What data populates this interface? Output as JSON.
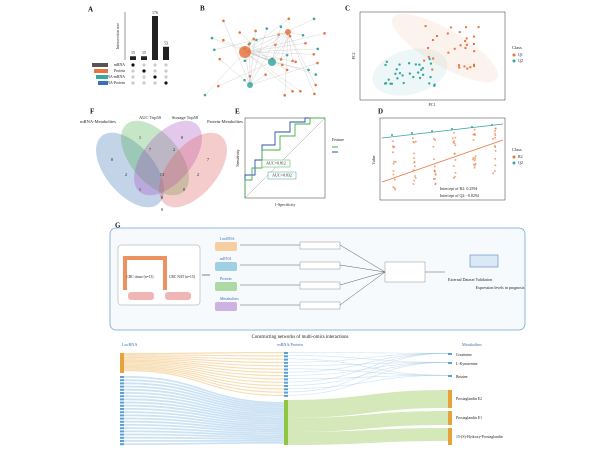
{
  "panels": {
    "A": {
      "letter": "A",
      "y_label": "Intersection size",
      "values": [
        15,
        15,
        176,
        53
      ],
      "sets": [
        "mRNA",
        "Protein",
        "LncRNA-mRNA",
        "LncRNA-Protein"
      ]
    },
    "B": {
      "letter": "B"
    },
    "C": {
      "letter": "C",
      "x_label": "PC1",
      "y_label": "PC2",
      "legend_title": "Class",
      "legend": [
        "Q1",
        "Q2"
      ]
    },
    "D": {
      "letter": "D",
      "y_label": "Value",
      "legend_title": "Class",
      "legend": [
        "R2",
        "Q2"
      ],
      "annotations": [
        "Intercept of R2: 0.2594",
        "Intercept of Q2: -0.8294"
      ]
    },
    "E": {
      "letter": "E",
      "x_label": "1-Specificity",
      "y_label": "Sensitivity",
      "legend_title": "Feature",
      "annotations": [
        "AUC=0.812",
        "AUC=0.832"
      ]
    },
    "F": {
      "letter": "F",
      "sets": [
        "mRNA-Metabolites",
        "AUC Top50",
        "Storage Top50",
        "Protein-Metabolites"
      ],
      "regions": [
        "0",
        "1",
        "0",
        "7",
        "2",
        "7",
        "13",
        "2",
        "2",
        "1",
        "0",
        "0",
        "0"
      ]
    },
    "G": {
      "letter": "G",
      "samples": [
        "CRC tissue (n=15)",
        "CRC NAT (n=15)"
      ],
      "omics": [
        "LncRNA",
        "mRNA",
        "Protein",
        "Metabolites"
      ],
      "steps": [
        "External Dataset Validation",
        "Expression levels in prognosis"
      ],
      "network_title": "Constructing networks of multi-omics interactions"
    },
    "sankey": {
      "columns": [
        "LncRNA",
        "mRNA/Protein",
        "Metabolites"
      ],
      "metabolites": [
        "Creatinine",
        "L-Kynurenine",
        "Betaine",
        "Prostaglandin E2",
        "Prostaglandin E1",
        "15-(S)-Hydroxy-Prostaglandin"
      ]
    }
  }
}
